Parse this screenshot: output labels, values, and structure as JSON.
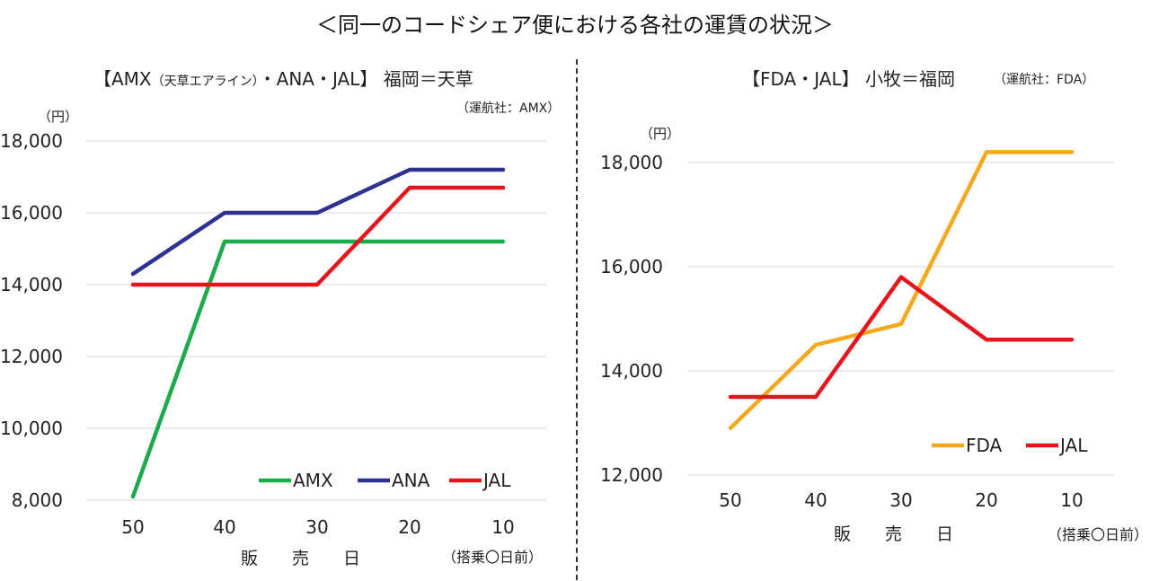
{
  "title": "＜同一のコードシェア便における各社の運賃の状況＞",
  "chart_data": [
    {
      "type": "line",
      "title_main": "【AMX",
      "title_small": "（天草エアライン）",
      "title_rest": "・ANA・JAL】 福岡＝天草",
      "operator": "（運航社：AMX）",
      "unit": "（円）",
      "xlabel": "販　　売　　日",
      "xnote": "（搭乗〇日前）",
      "categories": [
        "50",
        "40",
        "30",
        "20",
        "10"
      ],
      "ylim": [
        8000,
        18000
      ],
      "yticks": [
        "8,000",
        "10,000",
        "12,000",
        "14,000",
        "16,000",
        "18,000"
      ],
      "series": [
        {
          "name": "AMX",
          "color": "#1aab4b",
          "values": [
            8100,
            15200,
            15200,
            15200,
            15200
          ]
        },
        {
          "name": "ANA",
          "color": "#2e3192",
          "values": [
            14300,
            16000,
            16000,
            17200,
            17200
          ]
        },
        {
          "name": "JAL",
          "color": "#e8141b",
          "values": [
            14000,
            14000,
            14000,
            16700,
            16700
          ]
        }
      ],
      "legend": "bottom-right"
    },
    {
      "type": "line",
      "title_main": "【FDA・JAL】 小牧＝福岡",
      "operator": "（運航社：FDA）",
      "unit": "（円）",
      "xlabel": "販　　売　　日",
      "xnote": "（搭乗〇日前）",
      "categories": [
        "50",
        "40",
        "30",
        "20",
        "10"
      ],
      "ylim": [
        12000,
        18000
      ],
      "yticks": [
        "12,000",
        "14,000",
        "16,000",
        "18,000"
      ],
      "series": [
        {
          "name": "FDA",
          "color": "#f5a81c",
          "values": [
            12900,
            14500,
            14900,
            18200,
            18200
          ]
        },
        {
          "name": "JAL",
          "color": "#e8141b",
          "values": [
            13500,
            13500,
            15800,
            14600,
            14600
          ]
        }
      ],
      "legend": "bottom-right"
    }
  ]
}
